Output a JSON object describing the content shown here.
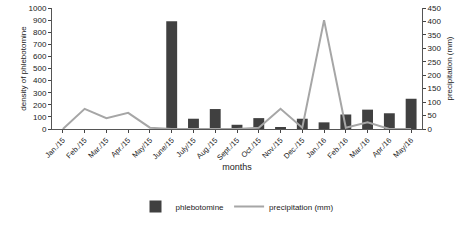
{
  "chart_data": {
    "type": "bar",
    "xlabel": "months",
    "ylabel": "density of phlebotomine",
    "y2label": "precipitation (mm)",
    "categories": [
      "Jan./15",
      "Feb./15",
      "Mar./15",
      "Apr./15",
      "May/15",
      "June/15",
      "July/15",
      "Aug./15",
      "Sept./15",
      "Oct./15",
      "Nov./15",
      "Dec./15",
      "Jan./16",
      "Feb./16",
      "Mar./16",
      "Apr./16",
      "May/16"
    ],
    "series": [
      {
        "name": "phlebotomine",
        "type": "bar",
        "color": "#404040",
        "values": [
          0,
          0,
          0,
          0,
          0,
          890,
          85,
          165,
          35,
          90,
          15,
          85,
          55,
          120,
          160,
          130,
          250
        ]
      },
      {
        "name": "precipitation (mm)",
        "type": "line",
        "axis": "y2",
        "color": "#a6a6a6",
        "values": [
          0,
          75,
          40,
          60,
          5,
          0,
          0,
          0,
          0,
          5,
          75,
          5,
          405,
          5,
          25,
          0,
          0
        ]
      }
    ],
    "ylim": [
      0,
      1000
    ],
    "yticks": [
      0,
      100,
      200,
      300,
      400,
      500,
      600,
      700,
      800,
      900,
      1000
    ],
    "y2lim": [
      0,
      450
    ],
    "y2ticks": [
      0,
      50,
      100,
      150,
      200,
      250,
      300,
      350,
      400,
      450
    ],
    "grid": false,
    "legend": "bottom"
  }
}
